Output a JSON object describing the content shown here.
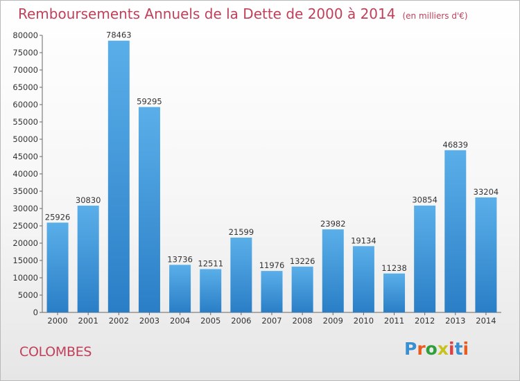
{
  "chart_data": {
    "type": "bar",
    "title": "Remboursements Annuels de la Dette de 2000 à 2014",
    "subtitle": "(en milliers d'€)",
    "categories": [
      "2000",
      "2001",
      "2002",
      "2003",
      "2004",
      "2005",
      "2006",
      "2007",
      "2008",
      "2009",
      "2010",
      "2011",
      "2012",
      "2013",
      "2014"
    ],
    "values": [
      25926,
      30830,
      78463,
      59295,
      13736,
      12511,
      21599,
      11976,
      13226,
      23982,
      19134,
      11238,
      30854,
      46839,
      33204
    ],
    "ylim": [
      0,
      80000
    ],
    "yticks": [
      0,
      5000,
      10000,
      15000,
      20000,
      25000,
      30000,
      35000,
      40000,
      45000,
      50000,
      55000,
      60000,
      65000,
      70000,
      75000,
      80000
    ],
    "grid": false,
    "xlabel": "",
    "ylabel": "",
    "colors": {
      "bar_top": "#5aafe9",
      "bar_bottom": "#2a7ec6",
      "title": "#c0405a"
    }
  },
  "footer": {
    "city": "COLOMBES",
    "logo": "Proxiti",
    "logo_colors": [
      "#3a8fd1",
      "#e85d1e",
      "#2e9f3a",
      "#c8c21e",
      "#e04040",
      "#3a8fd1",
      "#e85d1e"
    ]
  }
}
